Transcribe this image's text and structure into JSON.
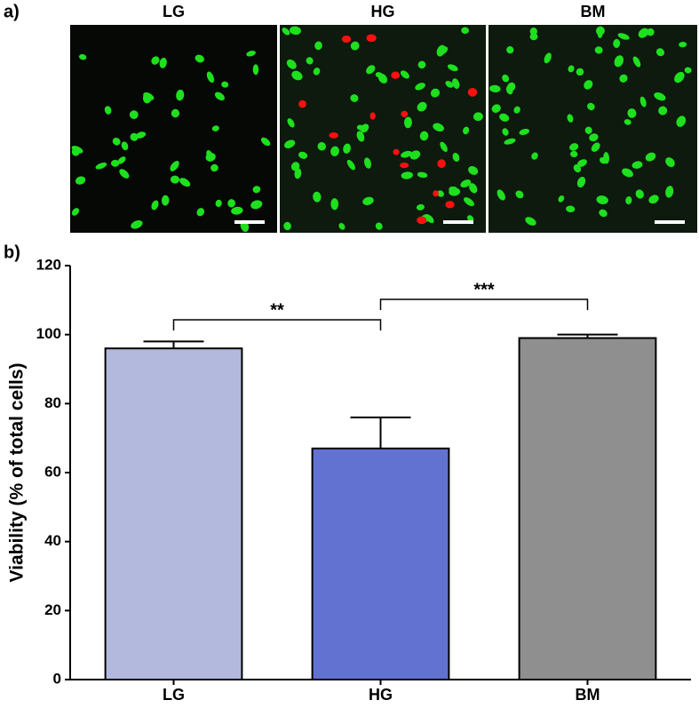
{
  "panel_labels": [
    "a)",
    "b)"
  ],
  "images": [
    {
      "label": "LG"
    },
    {
      "label": "HG"
    },
    {
      "label": "BM"
    }
  ],
  "chart_data": {
    "type": "bar",
    "ylabel": "Viability (% of total cells)",
    "categories": [
      "LG",
      "HG",
      "BM"
    ],
    "values": [
      96,
      67,
      99
    ],
    "errors": [
      2,
      9,
      1
    ],
    "colors": [
      "#b3b9dd",
      "#6272d0",
      "#8f8f8f"
    ],
    "ylim": [
      0,
      120
    ],
    "yticks": [
      0,
      20,
      40,
      60,
      80,
      100,
      120
    ],
    "annotations": [
      {
        "text": "**"
      },
      {
        "text": "***"
      }
    ]
  }
}
